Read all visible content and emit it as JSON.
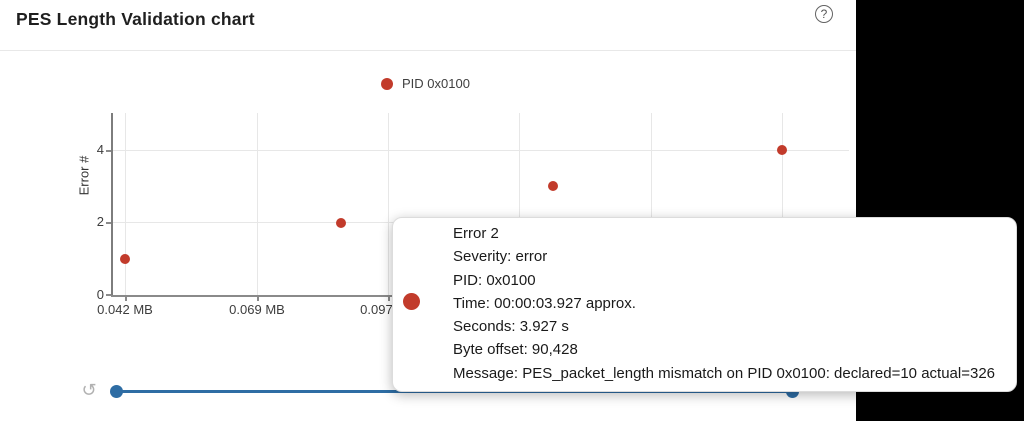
{
  "header": {
    "title": "PES Length Validation chart",
    "help_icon": "?"
  },
  "legend": {
    "label": "PID 0x0100",
    "marker_color": "#c23b2b"
  },
  "chart_data": {
    "type": "scatter",
    "title": "PES Length Validation chart",
    "xlabel": "",
    "x_unit": "MB",
    "ylabel": "Error #",
    "xticks": [
      "0.042 MB",
      "0.069 MB",
      "0.097 MB"
    ],
    "yticks": [
      "0",
      "2",
      "4"
    ],
    "ylim": [
      0,
      5
    ],
    "grid": true,
    "legend_position": "top-center",
    "series": [
      {
        "name": "PID 0x0100",
        "color": "#c23b2b",
        "points": [
          {
            "x_mb": 0.042,
            "y": 1
          },
          {
            "x_mb": 0.0862,
            "y": 2
          },
          {
            "x_mb": 0.1296,
            "y": 3
          },
          {
            "x_mb": 0.1764,
            "y": 4
          }
        ]
      }
    ]
  },
  "tooltip": {
    "lines": [
      "Error 2",
      "Severity: error",
      "PID: 0x0100",
      "Time: 00:00:03.927 approx.",
      "Seconds: 3.927 s",
      "Byte offset: 90,428",
      "Message: PES_packet_length mismatch on PID 0x0100: declared=10 actual=326"
    ]
  },
  "slider": {
    "reset_icon": "↺"
  },
  "colors": {
    "accent_red": "#c23b2b",
    "accent_blue": "#2e6da4",
    "backdrop": "#000000"
  }
}
